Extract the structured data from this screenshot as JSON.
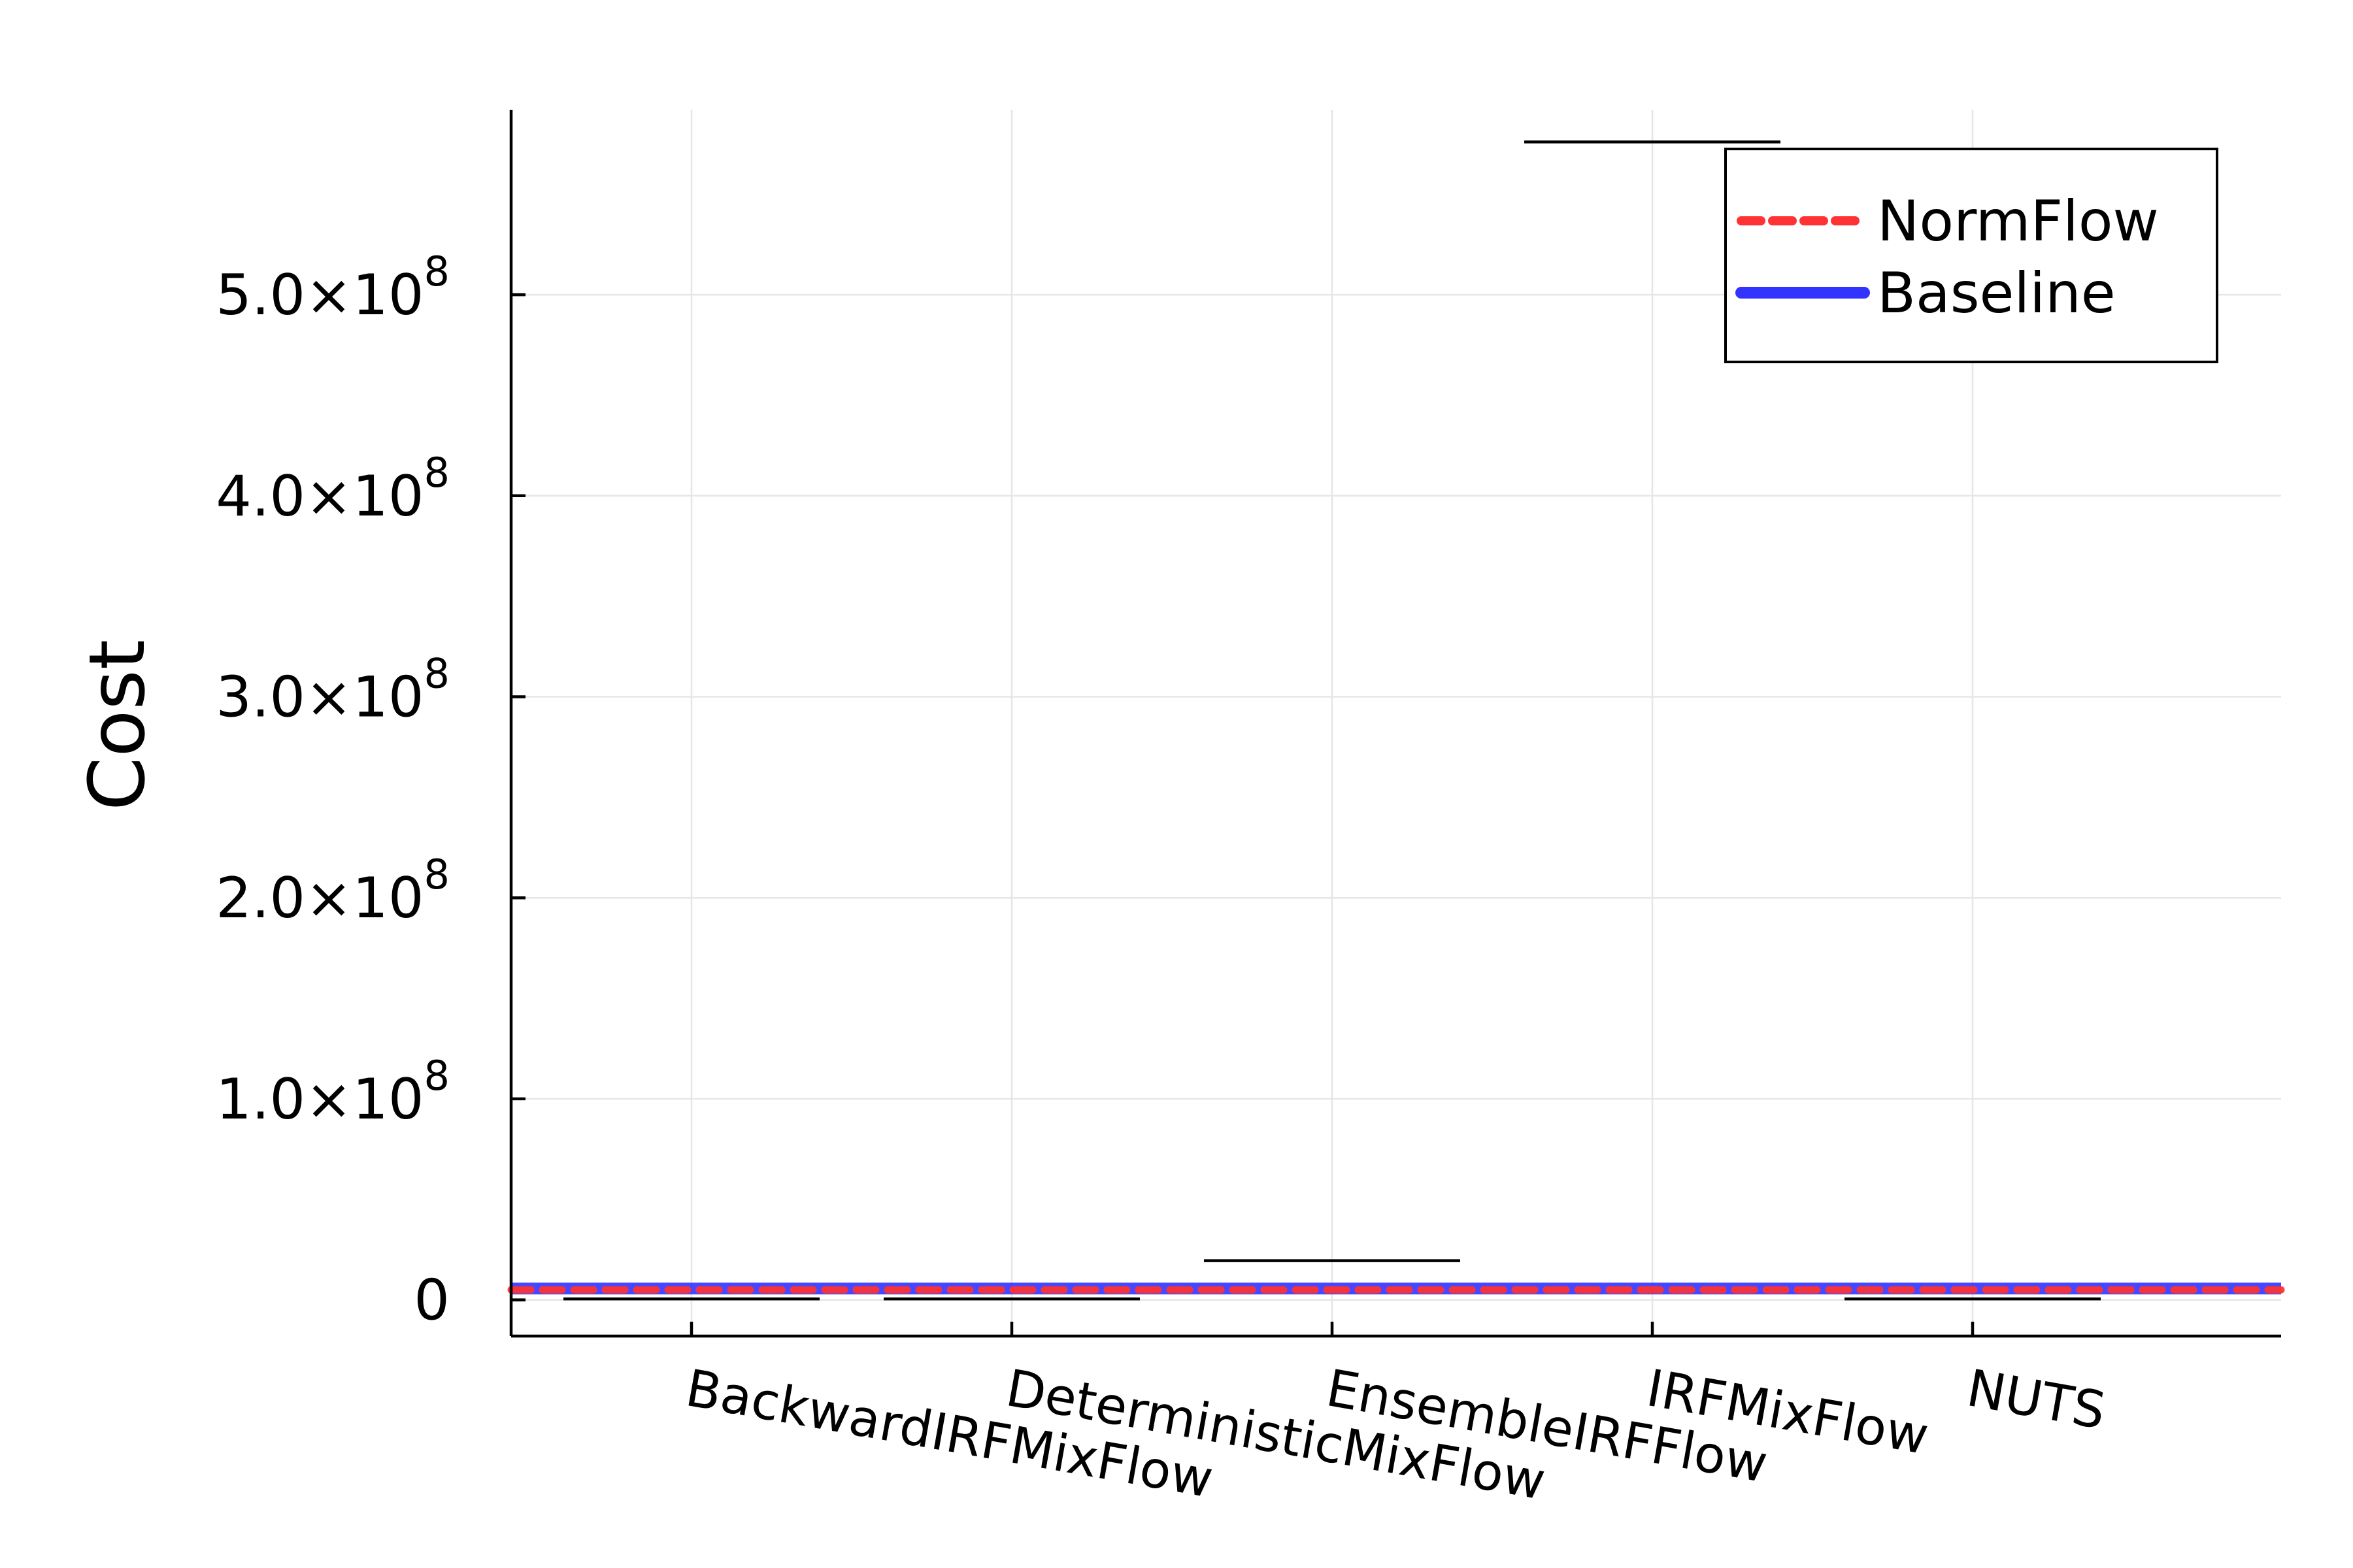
{
  "chart_data": {
    "type": "box",
    "title": "",
    "xlabel": "",
    "ylabel": "Cost",
    "ylim": [
      -18000000,
      592000000
    ],
    "categories": [
      "BackwardIRFMixFlow",
      "DeterministicMixFlow",
      "EnsembleIRFFlow",
      "IRFMixFlow",
      "NUTS"
    ],
    "yticks": [
      {
        "value": 0,
        "mantissa": "0",
        "exponent": ""
      },
      {
        "value": 100000000,
        "mantissa": "1.0×10",
        "exponent": "8"
      },
      {
        "value": 200000000,
        "mantissa": "2.0×10",
        "exponent": "8"
      },
      {
        "value": 300000000,
        "mantissa": "3.0×10",
        "exponent": "8"
      },
      {
        "value": 400000000,
        "mantissa": "4.0×10",
        "exponent": "8"
      },
      {
        "value": 500000000,
        "mantissa": "5.0×10",
        "exponent": "8"
      }
    ],
    "box_whiskers": [
      {
        "category": "BackwardIRFMixFlow",
        "value": 500000
      },
      {
        "category": "DeterministicMixFlow",
        "value": 500000
      },
      {
        "category": "EnsembleIRFFlow",
        "value": 19500000
      },
      {
        "category": "IRFMixFlow",
        "value": 576000000
      },
      {
        "category": "NUTS",
        "value": 500000
      }
    ],
    "series": [
      {
        "name": "NormFlow",
        "style": "dashed",
        "color": "#ff3333",
        "value": 5000000
      },
      {
        "name": "Baseline",
        "style": "solid",
        "color": "#3333ff",
        "value": 5000000
      }
    ],
    "legend": {
      "position": "top-right"
    },
    "grid": true
  }
}
